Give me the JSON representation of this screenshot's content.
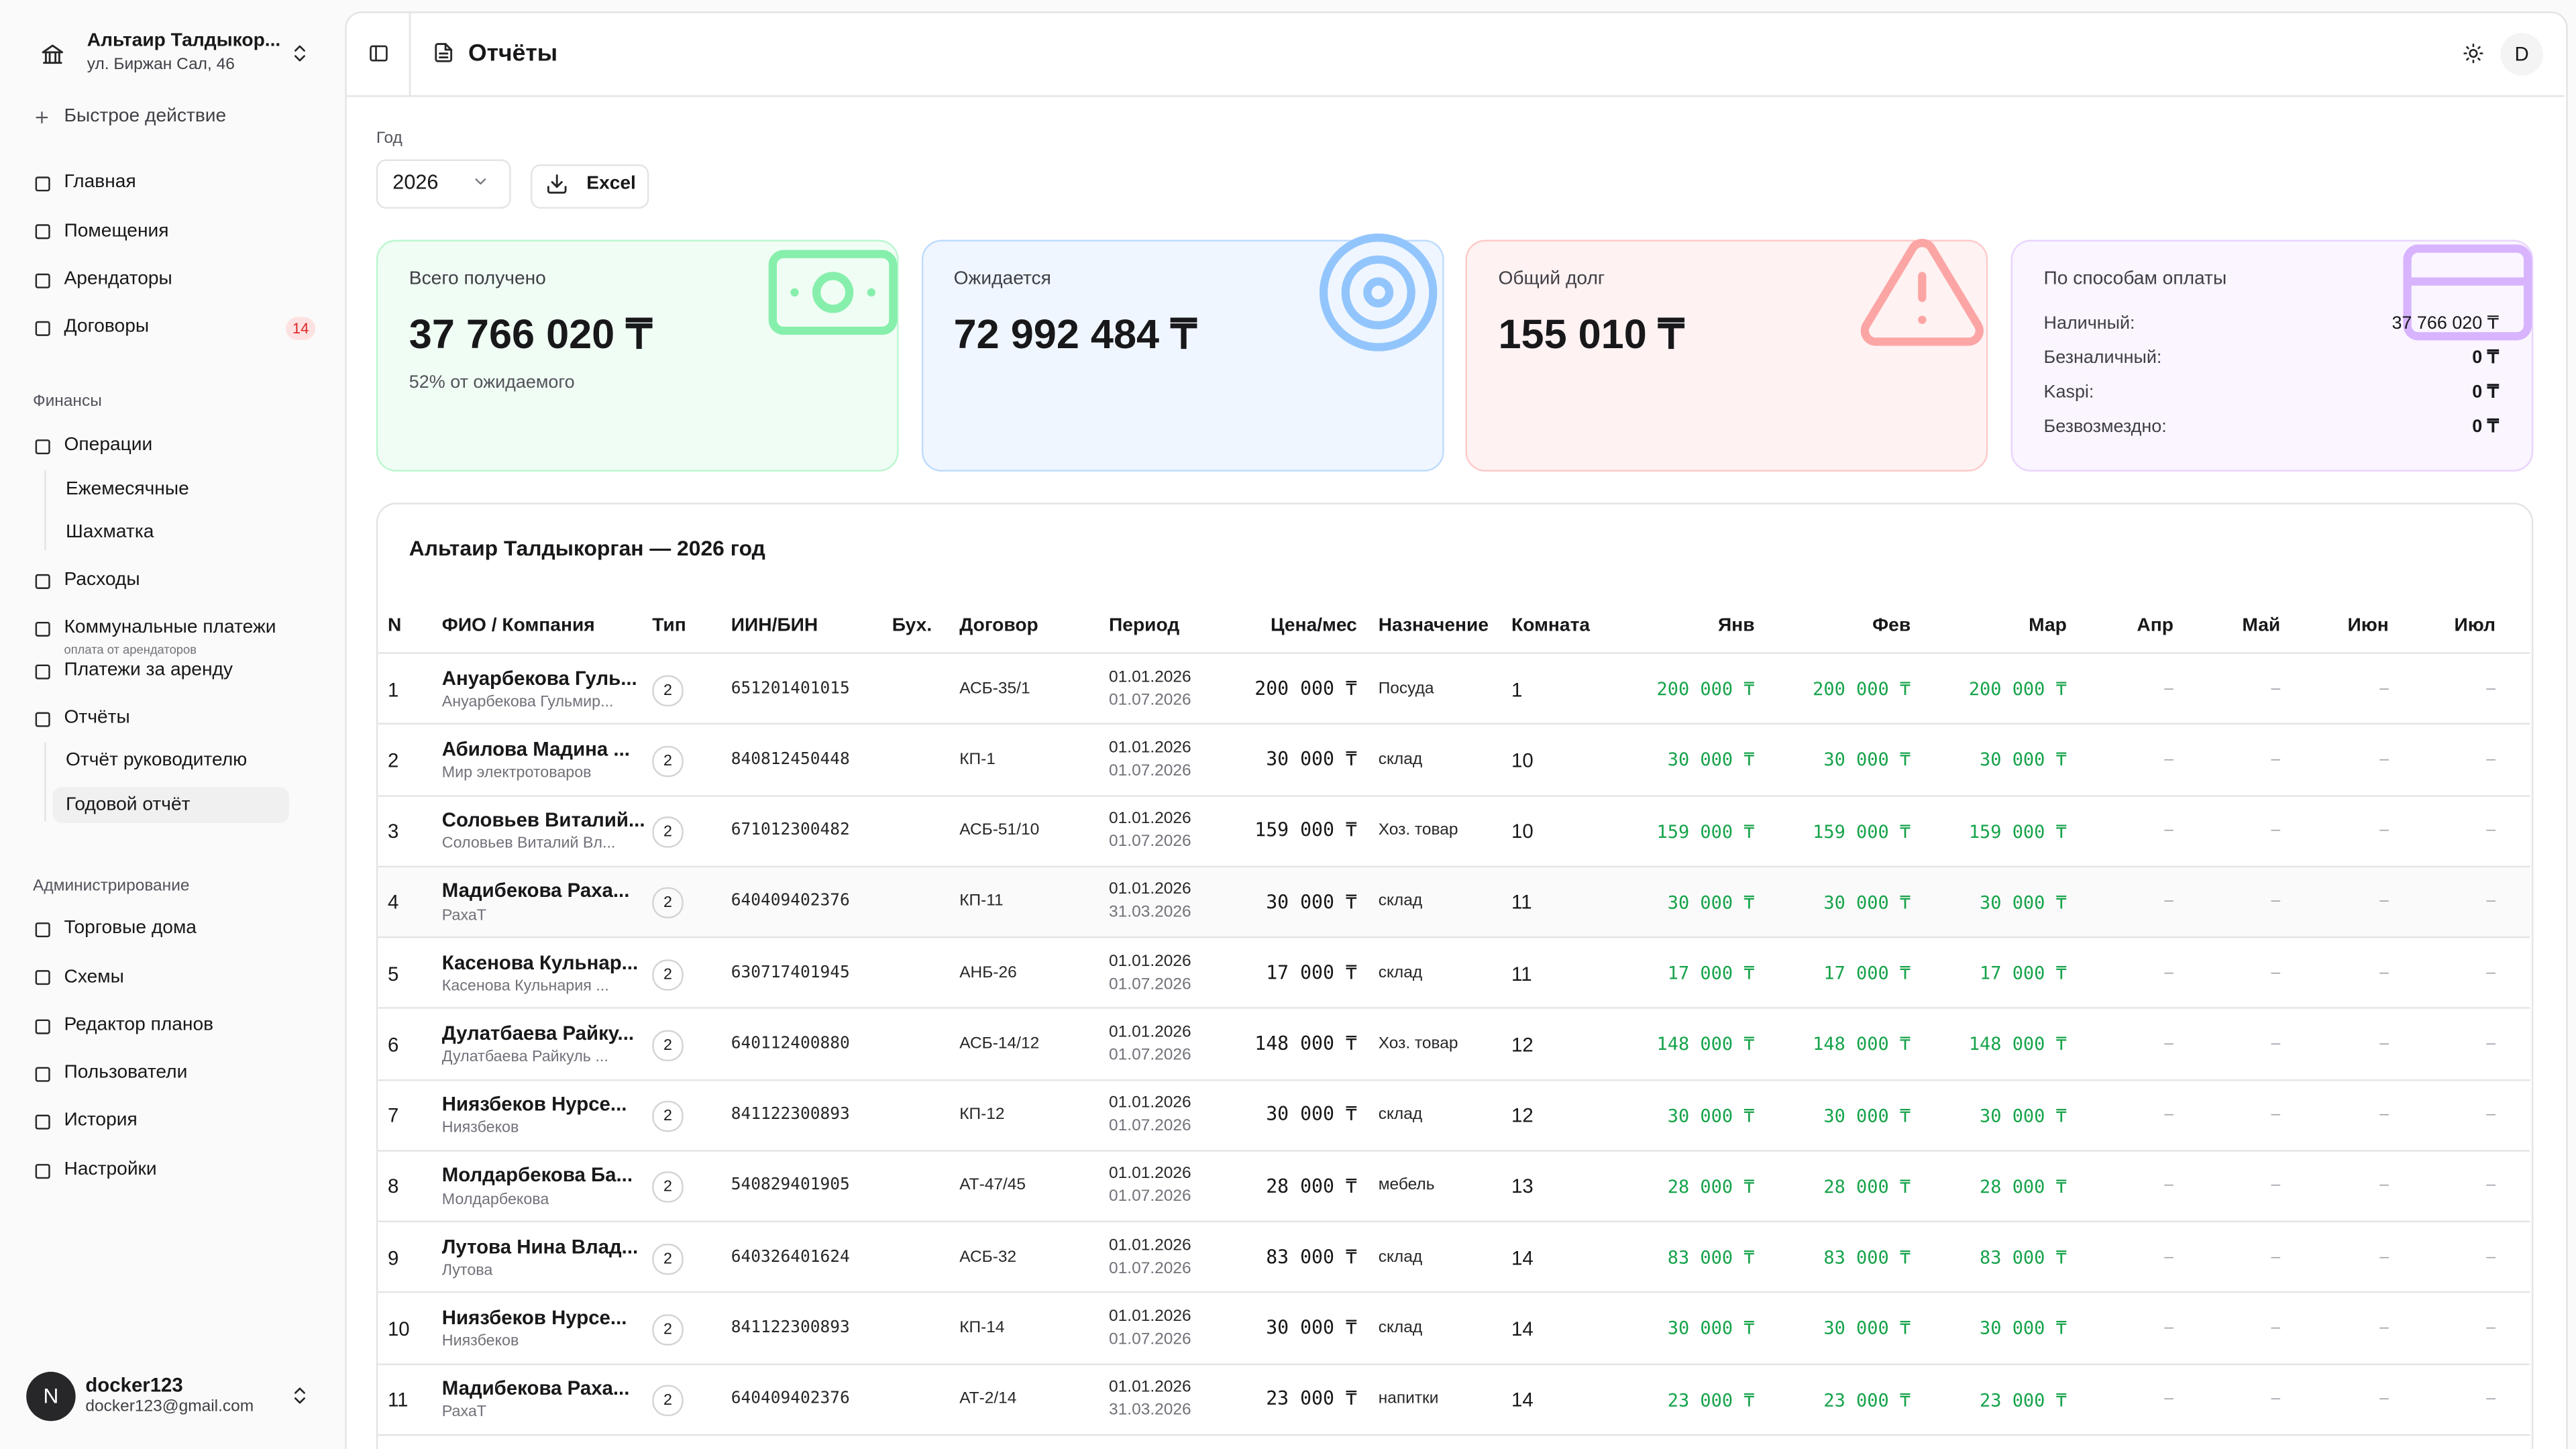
{
  "sidebar": {
    "org_name": "Альтаир Талдыкор...",
    "org_address": "ул. Биржан Сал, 46",
    "quick_action": "Быстрое действие",
    "main_nav": [
      {
        "label": "Главная"
      },
      {
        "label": "Помещения"
      },
      {
        "label": "Арендаторы"
      },
      {
        "label": "Договоры",
        "badge": "14"
      }
    ],
    "finance": {
      "title": "Финансы",
      "items": [
        {
          "label": "Операции",
          "children": [
            "Ежемесячные",
            "Шахматка"
          ]
        },
        {
          "label": "Расходы"
        },
        {
          "label": "Коммунальные платежи",
          "note": "оплата от арендаторов"
        },
        {
          "label": "Платежи за аренду"
        },
        {
          "label": "Отчёты",
          "children": [
            "Отчёт руководителю",
            "Годовой отчёт"
          ]
        }
      ]
    },
    "admin": {
      "title": "Администрирование",
      "items": [
        "Торговые дома",
        "Схемы",
        "Редактор планов",
        "Пользователи",
        "История",
        "Настройки"
      ]
    },
    "user": {
      "avatar": "N",
      "name": "docker123",
      "email": "docker123@gmail.com"
    }
  },
  "header": {
    "title": "Отчёты",
    "avatar": "D"
  },
  "filters": {
    "year_label": "Год",
    "year": "2026",
    "export": "Excel"
  },
  "cards": [
    {
      "title": "Всего получено",
      "amount": "37 766 020 ₸",
      "note": "52% от ожидаемого"
    },
    {
      "title": "Ожидается",
      "amount": "72 992 484 ₸"
    },
    {
      "title": "Общий долг",
      "amount": "155 010 ₸"
    }
  ],
  "payment_methods": {
    "title": "По способам оплаты",
    "rows": [
      {
        "label": "Наличный:",
        "value": "37 766 020 ₸"
      },
      {
        "label": "Безналичный:",
        "value": "0 ₸"
      },
      {
        "label": "Kaspi:",
        "value": "0 ₸"
      },
      {
        "label": "Безвозмездно:",
        "value": "0 ₸"
      }
    ]
  },
  "table": {
    "title": "Альтаир Талдыкорган — 2026 год",
    "columns": [
      "N",
      "ФИО / Компания",
      "Тип",
      "ИИН/БИН",
      "Бух.",
      "Договор",
      "Период",
      "Цена/мес",
      "Назначение",
      "Комната",
      "Янв",
      "Фев",
      "Мар",
      "Апр",
      "Май",
      "Июн",
      "Июл"
    ],
    "rows": [
      {
        "n": "1",
        "name": "Ануарбекова Гуль...",
        "sub": "Ануарбекова Гульмир...",
        "type": "2",
        "iin": "651201401015",
        "contract": "АСБ-35/1",
        "start": "01.01.2026",
        "end": "01.07.2026",
        "price": "200 000 ₸",
        "purpose": "Посуда",
        "room": "1",
        "months": [
          "200 000 ₸",
          "200 000 ₸",
          "200 000 ₸",
          "–",
          "–",
          "–",
          "–"
        ]
      },
      {
        "n": "2",
        "name": "Абилова Мадина ...",
        "sub": "Мир электротоваров",
        "type": "2",
        "iin": "840812450448",
        "contract": "КП-1",
        "start": "01.01.2026",
        "end": "01.07.2026",
        "price": "30 000 ₸",
        "purpose": "склад",
        "room": "10",
        "months": [
          "30 000 ₸",
          "30 000 ₸",
          "30 000 ₸",
          "–",
          "–",
          "–",
          "–"
        ]
      },
      {
        "n": "3",
        "name": "Соловьев Виталий...",
        "sub": "Соловьев Виталий Вл...",
        "type": "2",
        "iin": "671012300482",
        "contract": "АСБ-51/10",
        "start": "01.01.2026",
        "end": "01.07.2026",
        "price": "159 000 ₸",
        "purpose": "Хоз. товар",
        "room": "10",
        "months": [
          "159 000 ₸",
          "159 000 ₸",
          "159 000 ₸",
          "–",
          "–",
          "–",
          "–"
        ]
      },
      {
        "n": "4",
        "name": "Мадибекова Раха...",
        "sub": "РахаТ",
        "type": "2",
        "iin": "640409402376",
        "contract": "КП-11",
        "start": "01.01.2026",
        "end": "31.03.2026",
        "price": "30 000 ₸",
        "purpose": "склад",
        "room": "11",
        "months": [
          "30 000 ₸",
          "30 000 ₸",
          "30 000 ₸",
          "–",
          "–",
          "–",
          "–"
        ]
      },
      {
        "n": "5",
        "name": "Касенова Кульнар...",
        "sub": "Касенова Кульнария ...",
        "type": "2",
        "iin": "630717401945",
        "contract": "АНБ-26",
        "start": "01.01.2026",
        "end": "01.07.2026",
        "price": "17 000 ₸",
        "purpose": "склад",
        "room": "11",
        "months": [
          "17 000 ₸",
          "17 000 ₸",
          "17 000 ₸",
          "–",
          "–",
          "–",
          "–"
        ]
      },
      {
        "n": "6",
        "name": "Дулатбаева Райку...",
        "sub": "Дулатбаева Райкуль ...",
        "type": "2",
        "iin": "640112400880",
        "contract": "АСБ-14/12",
        "start": "01.01.2026",
        "end": "01.07.2026",
        "price": "148 000 ₸",
        "purpose": "Хоз. товар",
        "room": "12",
        "months": [
          "148 000 ₸",
          "148 000 ₸",
          "148 000 ₸",
          "–",
          "–",
          "–",
          "–"
        ]
      },
      {
        "n": "7",
        "name": "Ниязбеков Нурсе...",
        "sub": "Ниязбеков",
        "type": "2",
        "iin": "841122300893",
        "contract": "КП-12",
        "start": "01.01.2026",
        "end": "01.07.2026",
        "price": "30 000 ₸",
        "purpose": "склад",
        "room": "12",
        "months": [
          "30 000 ₸",
          "30 000 ₸",
          "30 000 ₸",
          "–",
          "–",
          "–",
          "–"
        ]
      },
      {
        "n": "8",
        "name": "Молдарбекова Ба...",
        "sub": "Молдарбекова",
        "type": "2",
        "iin": "540829401905",
        "contract": "АТ-47/45",
        "start": "01.01.2026",
        "end": "01.07.2026",
        "price": "28 000 ₸",
        "purpose": "мебель",
        "room": "13",
        "months": [
          "28 000 ₸",
          "28 000 ₸",
          "28 000 ₸",
          "–",
          "–",
          "–",
          "–"
        ]
      },
      {
        "n": "9",
        "name": "Лутова Нина Влад...",
        "sub": "Лутова",
        "type": "2",
        "iin": "640326401624",
        "contract": "АСБ-32",
        "start": "01.01.2026",
        "end": "01.07.2026",
        "price": "83 000 ₸",
        "purpose": "склад",
        "room": "14",
        "months": [
          "83 000 ₸",
          "83 000 ₸",
          "83 000 ₸",
          "–",
          "–",
          "–",
          "–"
        ]
      },
      {
        "n": "10",
        "name": "Ниязбеков Нурсе...",
        "sub": "Ниязбеков",
        "type": "2",
        "iin": "841122300893",
        "contract": "КП-14",
        "start": "01.01.2026",
        "end": "01.07.2026",
        "price": "30 000 ₸",
        "purpose": "склад",
        "room": "14",
        "months": [
          "30 000 ₸",
          "30 000 ₸",
          "30 000 ₸",
          "–",
          "–",
          "–",
          "–"
        ]
      },
      {
        "n": "11",
        "name": "Мадибекова Раха...",
        "sub": "РахаТ",
        "type": "2",
        "iin": "640409402376",
        "contract": "АТ-2/14",
        "start": "01.01.2026",
        "end": "31.03.2026",
        "price": "23 000 ₸",
        "purpose": "напитки",
        "room": "14",
        "months": [
          "23 000 ₸",
          "23 000 ₸",
          "23 000 ₸",
          "–",
          "–",
          "–",
          "–"
        ]
      }
    ]
  }
}
